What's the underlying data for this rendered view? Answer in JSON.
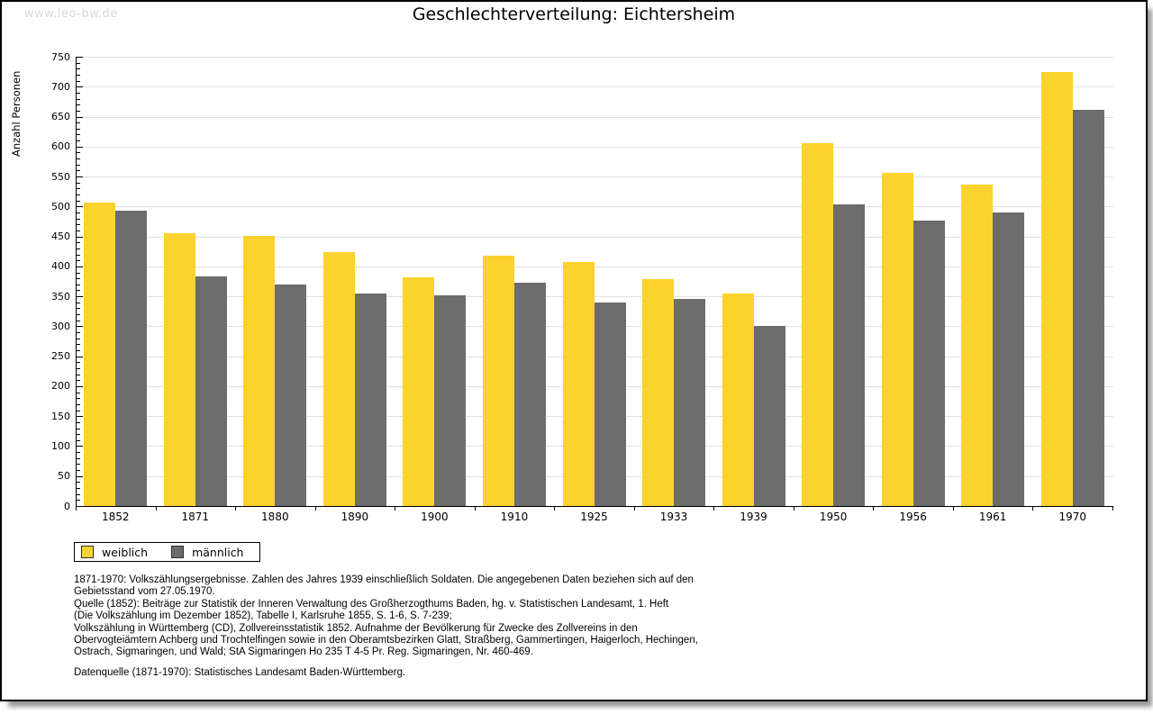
{
  "page": {
    "watermark": "www.leo-bw.de",
    "title": "Geschlechterverteilung: Eichtersheim"
  },
  "chart_data": {
    "type": "bar",
    "title": "Geschlechterverteilung: Eichtersheim",
    "xlabel": "",
    "ylabel": "Anzahl Personen",
    "ylim": [
      0,
      750
    ],
    "ytick_step": 50,
    "minor_tick_step": 10,
    "grid": true,
    "legend_position": "bottom-left",
    "categories": [
      "1852",
      "1871",
      "1880",
      "1890",
      "1900",
      "1910",
      "1925",
      "1933",
      "1939",
      "1950",
      "1956",
      "1961",
      "1970"
    ],
    "series": [
      {
        "name": "weiblich",
        "color": "#FCD22C",
        "values": [
          507,
          455,
          451,
          424,
          382,
          418,
          408,
          379,
          355,
          606,
          556,
          537,
          724
        ]
      },
      {
        "name": "männlich",
        "color": "#6C6C6C",
        "values": [
          493,
          384,
          369,
          354,
          351,
          373,
          339,
          345,
          300,
          503,
          477,
          490,
          662
        ]
      }
    ]
  },
  "footnotes": {
    "lines": [
      "1871-1970: Volkszählungsergebnisse. Zahlen des Jahres 1939 einschließlich Soldaten. Die angegebenen Daten beziehen sich auf den",
      "Gebietsstand vom 27.05.1970.",
      "Quelle (1852): Beiträge zur Statistik der Inneren Verwaltung des Großherzogthums Baden, hg. v. Statistischen Landesamt, 1. Heft",
      "(Die Volkszählung im Dezember 1852), Tabelle I, Karlsruhe 1855, S. 1-6, S. 7-239;",
      "Volkszählung in Württemberg (CD), Zollvereinsstatistik 1852. Aufnahme der Bevölkerung für Zwecke des Zollvereins in den",
      "Obervogteiämtern Achberg und Trochtelfingen sowie in den Oberamtsbezirken Glatt, Straßberg, Gammertingen, Haigerloch, Hechingen,",
      "Ostrach, Sigmaringen, und Wald; StA Sigmaringen Ho 235 T 4-5 Pr. Reg. Sigmaringen, Nr. 460-469."
    ],
    "datenquelle": "Datenquelle (1871-1970): Statistisches Landesamt Baden-Württemberg."
  },
  "colors": {
    "weiblich": "#FCD22C",
    "maennlich": "#6C6C6C",
    "gridline": "#e0e0e0",
    "watermark": "#d9d9d9",
    "axis": "#000000"
  }
}
